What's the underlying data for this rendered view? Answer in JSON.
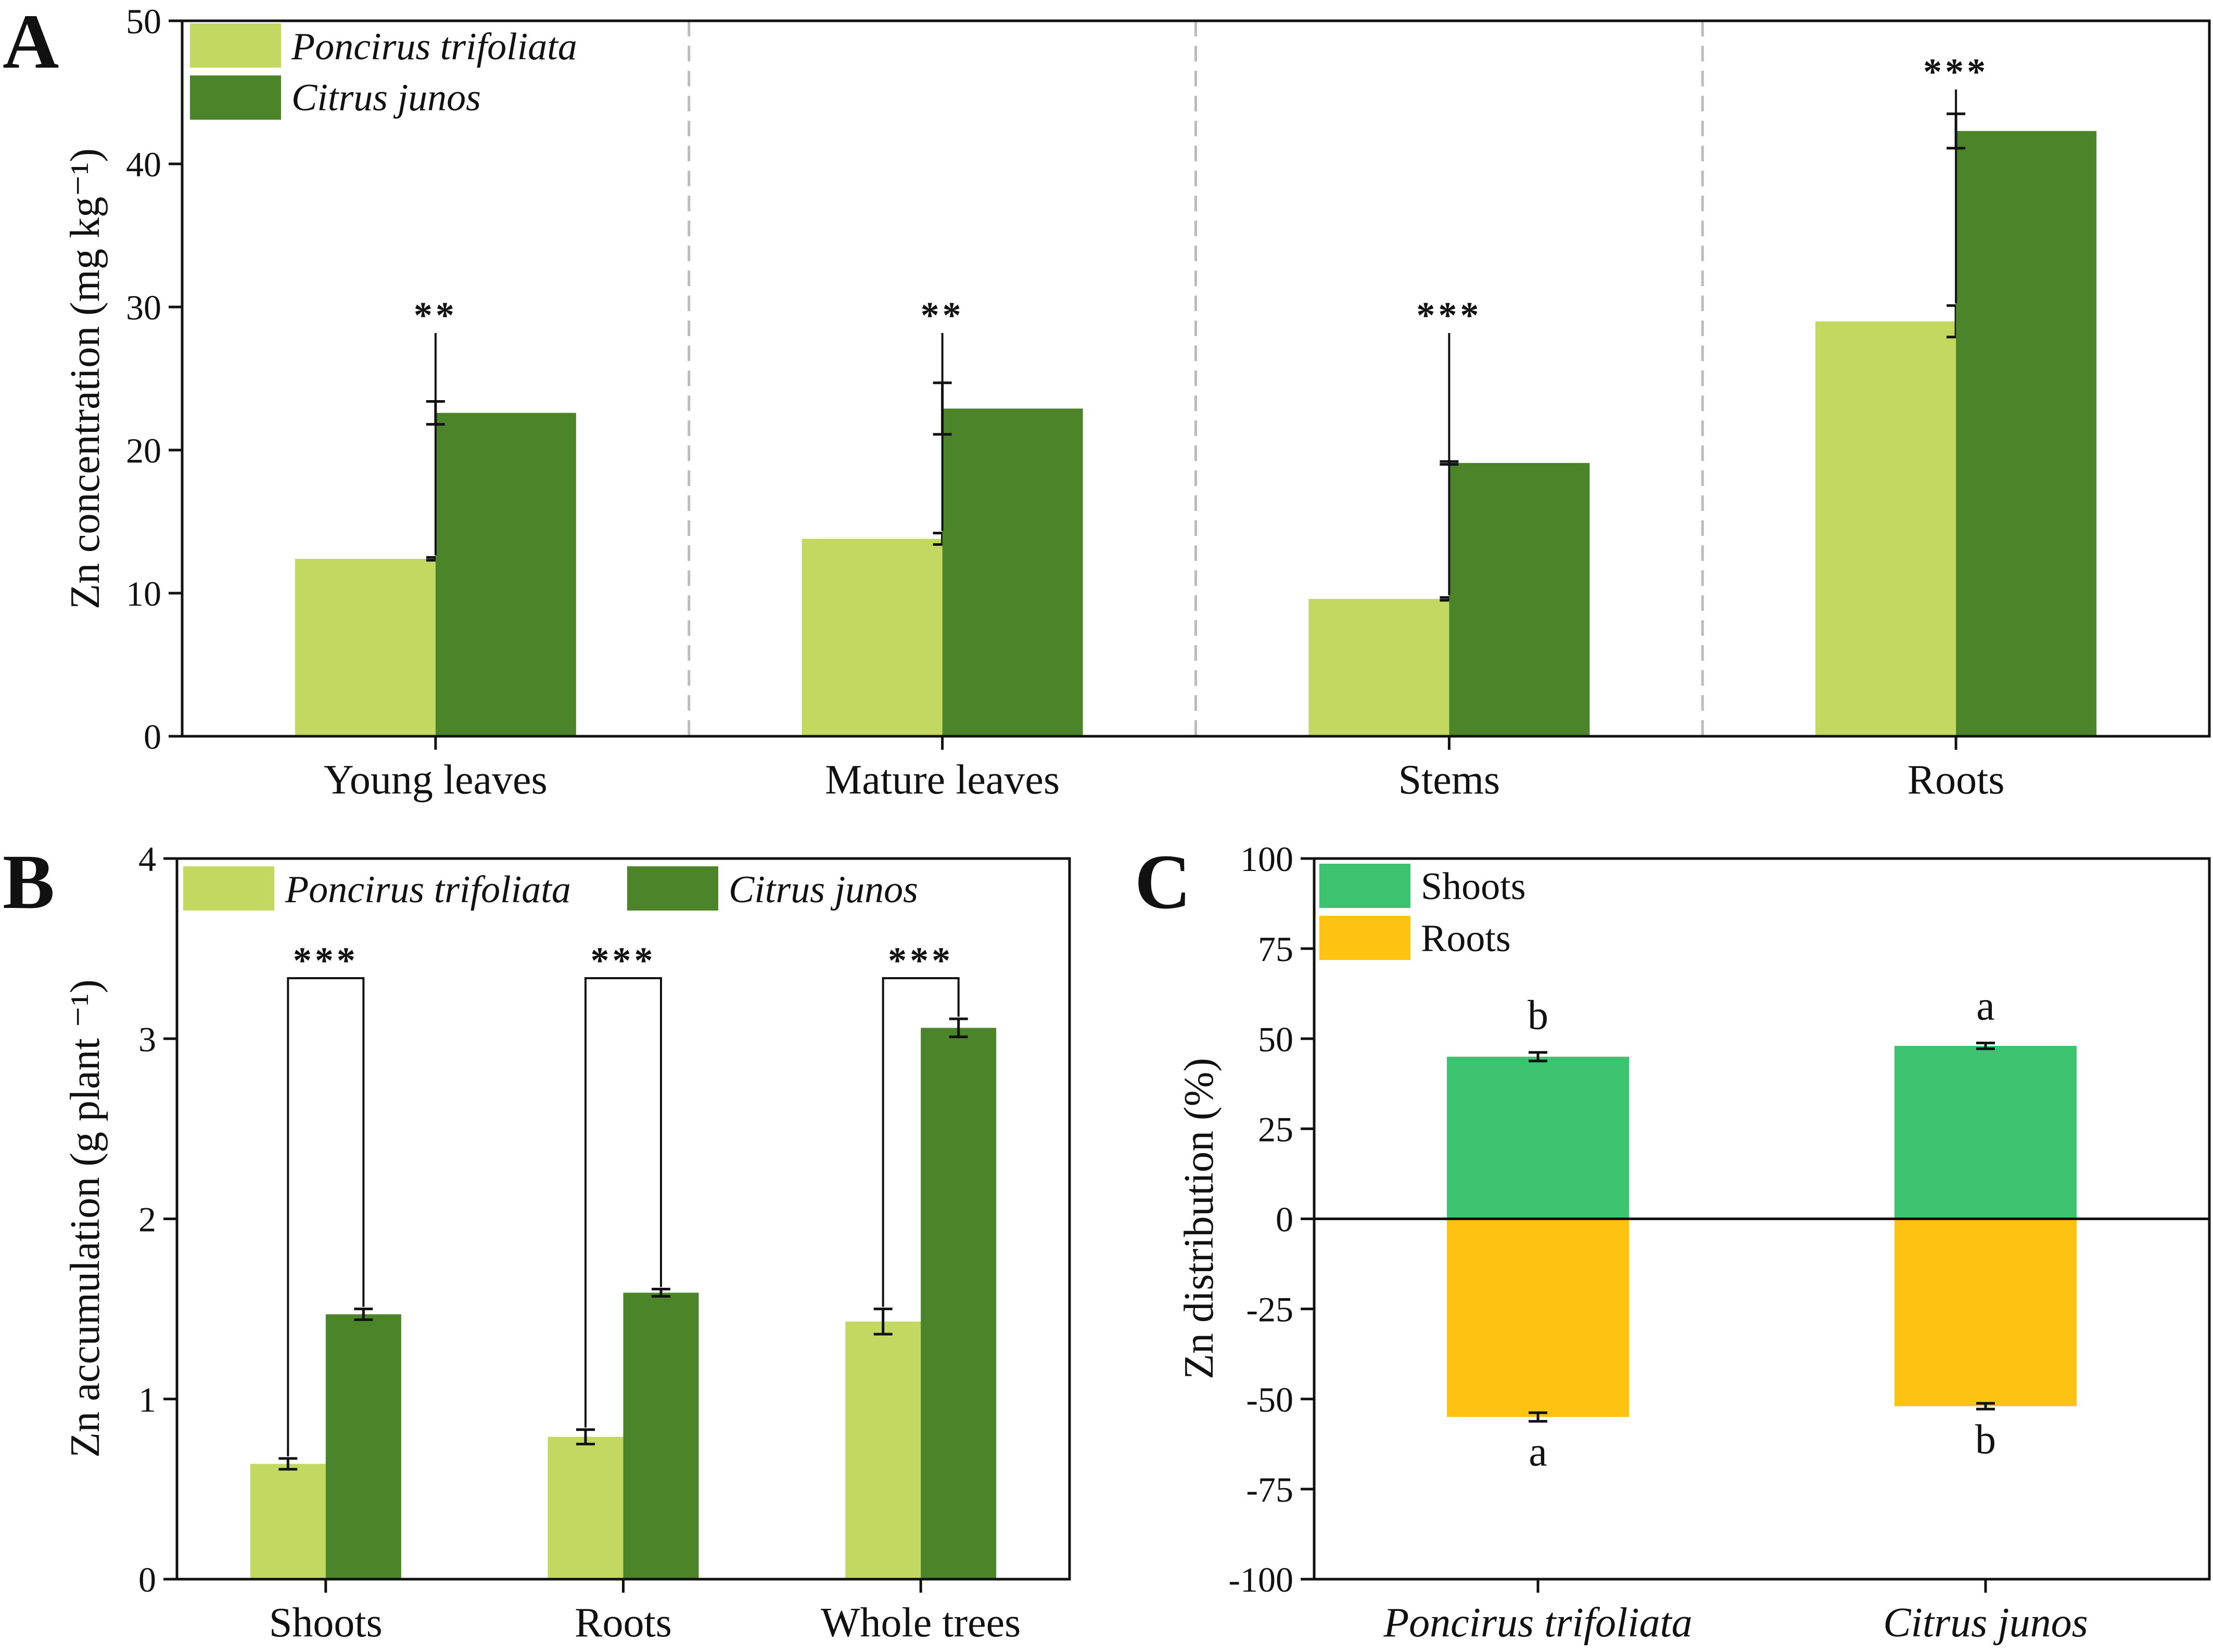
{
  "colors": {
    "light_green": "#c3d860",
    "dark_green": "#4b8429",
    "shoots": "#3dc370",
    "roots": "#fdc212"
  },
  "panels": {
    "A": {
      "label": "A"
    },
    "B": {
      "label": "B"
    },
    "C": {
      "label": "C"
    }
  },
  "chart_data": [
    {
      "id": "A",
      "type": "bar",
      "ylabel": "Zn concentration (mg kg⁻¹)",
      "ylim": [
        0,
        50
      ],
      "yticks": [
        0,
        10,
        20,
        30,
        40,
        50
      ],
      "categories": [
        "Young leaves",
        "Mature leaves",
        "Stems",
        "Roots"
      ],
      "series": [
        {
          "name": "Poncirus trifoliata",
          "values": [
            12.4,
            13.8,
            9.6,
            29.0
          ],
          "errors": [
            0.1,
            0.4,
            0.1,
            1.1
          ]
        },
        {
          "name": "Citrus junos",
          "values": [
            22.6,
            22.9,
            19.1,
            42.3
          ],
          "errors": [
            0.8,
            1.8,
            0.1,
            1.2
          ]
        }
      ],
      "significance": [
        "**",
        "**",
        "***",
        "***"
      ],
      "legend": "top-left"
    },
    {
      "id": "B",
      "type": "bar",
      "ylabel": "Zn accumulation (g plant ⁻¹)",
      "ylim": [
        0,
        4
      ],
      "yticks": [
        0,
        1,
        2,
        3,
        4
      ],
      "categories": [
        "Shoots",
        "Roots",
        "Whole trees"
      ],
      "series": [
        {
          "name": "Poncirus trifoliata",
          "values": [
            0.64,
            0.79,
            1.43
          ],
          "errors": [
            0.03,
            0.04,
            0.07
          ]
        },
        {
          "name": "Citrus junos",
          "values": [
            1.47,
            1.59,
            3.06
          ],
          "errors": [
            0.03,
            0.02,
            0.05
          ]
        }
      ],
      "significance": [
        "***",
        "***",
        "***"
      ],
      "legend": "top"
    },
    {
      "id": "C",
      "type": "bar",
      "ylabel": "Zn distribution (%)",
      "ylim": [
        -100,
        100
      ],
      "yticks": [
        100,
        75,
        50,
        25,
        0,
        -25,
        -50,
        -75,
        -100
      ],
      "categories": [
        "Poncirus trifoliata",
        "Citrus junos"
      ],
      "series": [
        {
          "name": "Shoots",
          "values": [
            45.0,
            48.0
          ],
          "errors": [
            1.2,
            0.8
          ],
          "letters": [
            "b",
            "a"
          ]
        },
        {
          "name": "Roots",
          "values": [
            -55.0,
            -52.0
          ],
          "errors": [
            1.2,
            0.8
          ],
          "letters": [
            "a",
            "b"
          ]
        }
      ],
      "legend": "top-left"
    }
  ]
}
